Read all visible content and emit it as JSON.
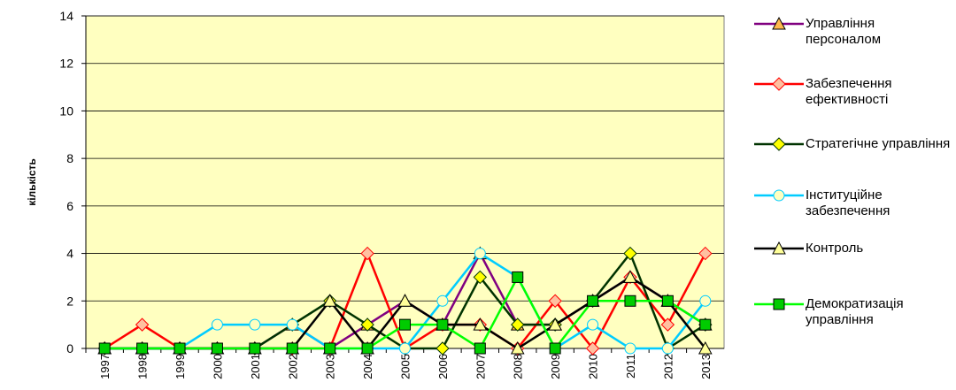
{
  "chart_data": {
    "type": "line",
    "categories": [
      "1997",
      "1998",
      "1999",
      "2000",
      "2001",
      "2002",
      "2003",
      "2004",
      "2005",
      "2006",
      "2007",
      "2008",
      "2009",
      "2010",
      "2011",
      "2012",
      "2013"
    ],
    "ylabel": "кількість",
    "ylim": [
      0,
      14
    ],
    "yticks": [
      0,
      2,
      4,
      6,
      8,
      10,
      12,
      14
    ],
    "grid": true,
    "series": [
      {
        "name": "Управління персоналом",
        "color": "#800080",
        "marker": "triangle",
        "marker_color": "#ffb84d",
        "values": [
          0,
          0,
          0,
          0,
          0,
          1,
          0,
          1,
          2,
          1,
          4,
          1,
          1,
          2,
          3,
          2,
          1
        ]
      },
      {
        "name": "Забезпечення ефективності",
        "color": "#ff0000",
        "marker": "diamond",
        "marker_color": "#ffc0a0",
        "values": [
          0,
          1,
          0,
          0,
          0,
          0,
          0,
          4,
          0,
          1,
          1,
          0,
          2,
          0,
          3,
          1,
          4
        ]
      },
      {
        "name": "Стратегічне управління",
        "color": "#003300",
        "marker": "diamond",
        "marker_color": "#ffff00",
        "values": [
          0,
          0,
          0,
          0,
          0,
          1,
          2,
          1,
          0,
          0,
          3,
          1,
          1,
          2,
          4,
          0,
          1
        ]
      },
      {
        "name": "Інституційне забезпечення",
        "color": "#00ccff",
        "marker": "circle",
        "marker_color": "#ffffc0",
        "values": [
          0,
          0,
          0,
          1,
          1,
          1,
          0,
          0,
          0,
          2,
          4,
          3,
          0,
          1,
          0,
          0,
          2
        ]
      },
      {
        "name": "Контроль",
        "color": "#000000",
        "marker": "triangle",
        "marker_color": "#ffff99",
        "values": [
          0,
          0,
          0,
          0,
          0,
          0,
          2,
          0,
          2,
          1,
          1,
          0,
          1,
          2,
          3,
          2,
          0
        ]
      },
      {
        "name": "Демократизація управління",
        "color": "#00ff00",
        "marker": "square",
        "marker_color": "#00cc00",
        "values": [
          0,
          0,
          0,
          0,
          0,
          0,
          0,
          0,
          1,
          1,
          0,
          3,
          0,
          2,
          2,
          2,
          1
        ]
      }
    ]
  }
}
